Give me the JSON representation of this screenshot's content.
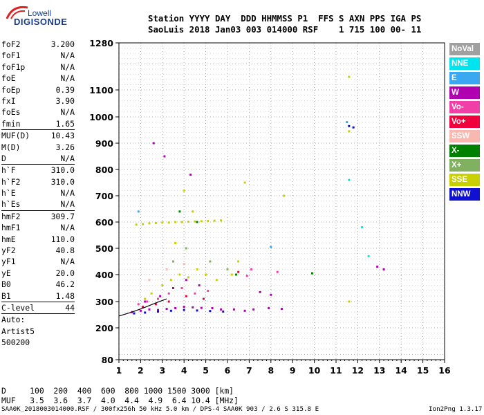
{
  "logo": {
    "line1": "Lowell",
    "line2": "DIGISONDE"
  },
  "header": {
    "line1": "Station YYYY DAY  DDD HHMMSS P1  FFS S AXN PPS IGA PS",
    "line2": "SaoLuis 2018 Jan03 003 014000 RSF    1 715 100 00- 11"
  },
  "params": [
    {
      "name": "foF2",
      "value": "3.200"
    },
    {
      "name": "foF1",
      "value": "N/A"
    },
    {
      "name": "foF1p",
      "value": "N/A"
    },
    {
      "name": "foE",
      "value": "N/A"
    },
    {
      "name": "foEp",
      "value": "0.39"
    },
    {
      "name": "fxI",
      "value": "3.90"
    },
    {
      "name": "foEs",
      "value": "N/A"
    },
    {
      "name": "fmin",
      "value": "1.65",
      "sep": true
    },
    {
      "name": "MUF(D)",
      "value": "10.43"
    },
    {
      "name": "M(D)",
      "value": "3.26"
    },
    {
      "name": "D",
      "value": "N/A",
      "sep": true
    },
    {
      "name": "h`F",
      "value": "310.0"
    },
    {
      "name": "h`F2",
      "value": "310.0"
    },
    {
      "name": "h`E",
      "value": "N/A"
    },
    {
      "name": "h`Es",
      "value": "N/A",
      "sep": true
    },
    {
      "name": "hmF2",
      "value": "309.7"
    },
    {
      "name": "hmF1",
      "value": "N/A"
    },
    {
      "name": "hmE",
      "value": "110.0"
    },
    {
      "name": "yF2",
      "value": "40.8"
    },
    {
      "name": "yF1",
      "value": "N/A"
    },
    {
      "name": "yE",
      "value": "20.0"
    },
    {
      "name": "B0",
      "value": "46.2"
    },
    {
      "name": "B1",
      "value": "1.48",
      "sep": true
    },
    {
      "name": "C-level",
      "value": "44",
      "sep": true
    },
    {
      "name": "Auto:",
      "value": ""
    },
    {
      "name": "Artist5",
      "value": ""
    },
    {
      "name": "500200",
      "value": ""
    }
  ],
  "legend": [
    {
      "label": "NoVal",
      "color": "#a0a0a0"
    },
    {
      "label": "NNE",
      "color": "#00e4f0"
    },
    {
      "label": "E",
      "color": "#3aa8f0"
    },
    {
      "label": "W",
      "color": "#b000b0"
    },
    {
      "label": "Vo-",
      "color": "#f040a8"
    },
    {
      "label": "Vo+",
      "color": "#f0003c"
    },
    {
      "label": "SSW",
      "color": "#f8b8b0"
    },
    {
      "label": "X-",
      "color": "#008000"
    },
    {
      "label": "X+",
      "color": "#80b060"
    },
    {
      "label": "SSE",
      "color": "#c8d000"
    },
    {
      "label": "NNW",
      "color": "#1010d0"
    }
  ],
  "bottom": {
    "line1": "D     100  200  400  600  800 1000 1500 3000 [km]",
    "line2": "MUF   3.5  3.6  3.7  4.0  4.4  4.9  6.4 10.4 [MHz]"
  },
  "footer": {
    "left": "SAA0K_2018003014000.RSF / 300fx256h 50 kHz 5.0 km / DPS-4 SAA0K 903 / 2.6 S 315.8 E",
    "right": "Ion2Png 1.3.17"
  },
  "chart_data": {
    "type": "scatter",
    "title": "",
    "xlabel": "",
    "ylabel": "",
    "xlim": [
      1,
      16
    ],
    "ylim": [
      80,
      1280
    ],
    "x_ticks": [
      1,
      2,
      3,
      4,
      5,
      6,
      7,
      8,
      9,
      10,
      11,
      12,
      13,
      14,
      15,
      16
    ],
    "y_ticks": [
      80,
      200,
      300,
      400,
      500,
      600,
      700,
      800,
      900,
      1000,
      1100,
      1280
    ],
    "grid": true,
    "legend_position": "right",
    "series": [
      {
        "name": "SSE",
        "color": "#c8d000",
        "points": [
          [
            1.8,
            590
          ],
          [
            2.1,
            592
          ],
          [
            2.4,
            595
          ],
          [
            2.7,
            596
          ],
          [
            3.0,
            598
          ],
          [
            3.3,
            598
          ],
          [
            3.6,
            600
          ],
          [
            3.9,
            600
          ],
          [
            4.2,
            601
          ],
          [
            4.5,
            602
          ],
          [
            4.8,
            603
          ],
          [
            5.1,
            604
          ],
          [
            5.4,
            605
          ],
          [
            5.7,
            606
          ],
          [
            2.5,
            330
          ],
          [
            3.0,
            360
          ],
          [
            3.4,
            380
          ],
          [
            3.8,
            400
          ],
          [
            4.2,
            390
          ],
          [
            4.6,
            420
          ],
          [
            5.0,
            400
          ],
          [
            5.5,
            380
          ],
          [
            2.2,
            310
          ],
          [
            3.6,
            520
          ],
          [
            4.4,
            640
          ],
          [
            4.0,
            720
          ],
          [
            6.8,
            750
          ],
          [
            8.6,
            700
          ],
          [
            11.6,
            1150
          ],
          [
            11.6,
            945
          ],
          [
            11.6,
            300
          ],
          [
            6.2,
            400
          ],
          [
            6.5,
            450
          ]
        ]
      },
      {
        "name": "W",
        "color": "#b000b0",
        "points": [
          [
            1.6,
            260
          ],
          [
            2.0,
            265
          ],
          [
            2.4,
            270
          ],
          [
            2.8,
            268
          ],
          [
            3.2,
            272
          ],
          [
            3.6,
            275
          ],
          [
            4.0,
            280
          ],
          [
            4.4,
            278
          ],
          [
            4.8,
            276
          ],
          [
            5.3,
            275
          ],
          [
            5.7,
            270
          ],
          [
            6.3,
            270
          ],
          [
            6.8,
            265
          ],
          [
            7.2,
            270
          ],
          [
            7.9,
            275
          ],
          [
            8.5,
            272
          ],
          [
            2.2,
            300
          ],
          [
            2.9,
            320
          ],
          [
            3.5,
            350
          ],
          [
            4.1,
            380
          ],
          [
            4.7,
            360
          ],
          [
            2.6,
            900
          ],
          [
            3.1,
            850
          ],
          [
            4.3,
            780
          ],
          [
            7.5,
            335
          ],
          [
            8.0,
            325
          ],
          [
            12.9,
            430
          ],
          [
            13.2,
            420
          ]
        ]
      },
      {
        "name": "Vo-",
        "color": "#f040a8",
        "points": [
          [
            1.9,
            290
          ],
          [
            2.3,
            300
          ],
          [
            2.8,
            310
          ],
          [
            3.3,
            330
          ],
          [
            3.9,
            350
          ],
          [
            4.5,
            330
          ],
          [
            5.1,
            340
          ],
          [
            6.9,
            395
          ],
          [
            7.1,
            420
          ],
          [
            8.3,
            410
          ]
        ]
      },
      {
        "name": "Vo+",
        "color": "#f0003c",
        "points": [
          [
            2.1,
            280
          ],
          [
            2.7,
            290
          ],
          [
            3.3,
            300
          ],
          [
            4.1,
            320
          ],
          [
            4.9,
            310
          ],
          [
            6.5,
            410
          ]
        ]
      },
      {
        "name": "NNW",
        "color": "#1010d0",
        "points": [
          [
            1.7,
            255
          ],
          [
            2.2,
            258
          ],
          [
            2.8,
            262
          ],
          [
            3.4,
            265
          ],
          [
            4.0,
            268
          ],
          [
            4.6,
            266
          ],
          [
            5.2,
            264
          ],
          [
            5.8,
            262
          ],
          [
            11.6,
            965
          ],
          [
            11.8,
            960
          ]
        ]
      },
      {
        "name": "X-",
        "color": "#008000",
        "points": [
          [
            3.8,
            640
          ],
          [
            4.6,
            600
          ],
          [
            6.4,
            400
          ],
          [
            9.9,
            405
          ]
        ]
      },
      {
        "name": "X+",
        "color": "#80b060",
        "points": [
          [
            3.5,
            450
          ],
          [
            4.1,
            500
          ],
          [
            5.2,
            450
          ],
          [
            6.0,
            420
          ]
        ]
      },
      {
        "name": "NNE",
        "color": "#00e4f0",
        "points": [
          [
            11.6,
            760
          ],
          [
            12.2,
            580
          ],
          [
            12.5,
            470
          ]
        ]
      },
      {
        "name": "E",
        "color": "#3aa8f0",
        "points": [
          [
            1.9,
            640
          ],
          [
            8.0,
            505
          ],
          [
            11.5,
            980
          ]
        ]
      },
      {
        "name": "SSW",
        "color": "#f8b8b0",
        "points": [
          [
            2.4,
            380
          ],
          [
            3.2,
            420
          ],
          [
            4.0,
            440
          ]
        ]
      }
    ],
    "annotations": [
      {
        "type": "trace",
        "color": "#000000",
        "points": [
          [
            1.0,
            245
          ],
          [
            1.6,
            260
          ],
          [
            2.2,
            278
          ],
          [
            2.7,
            295
          ],
          [
            3.2,
            310
          ]
        ]
      }
    ]
  }
}
